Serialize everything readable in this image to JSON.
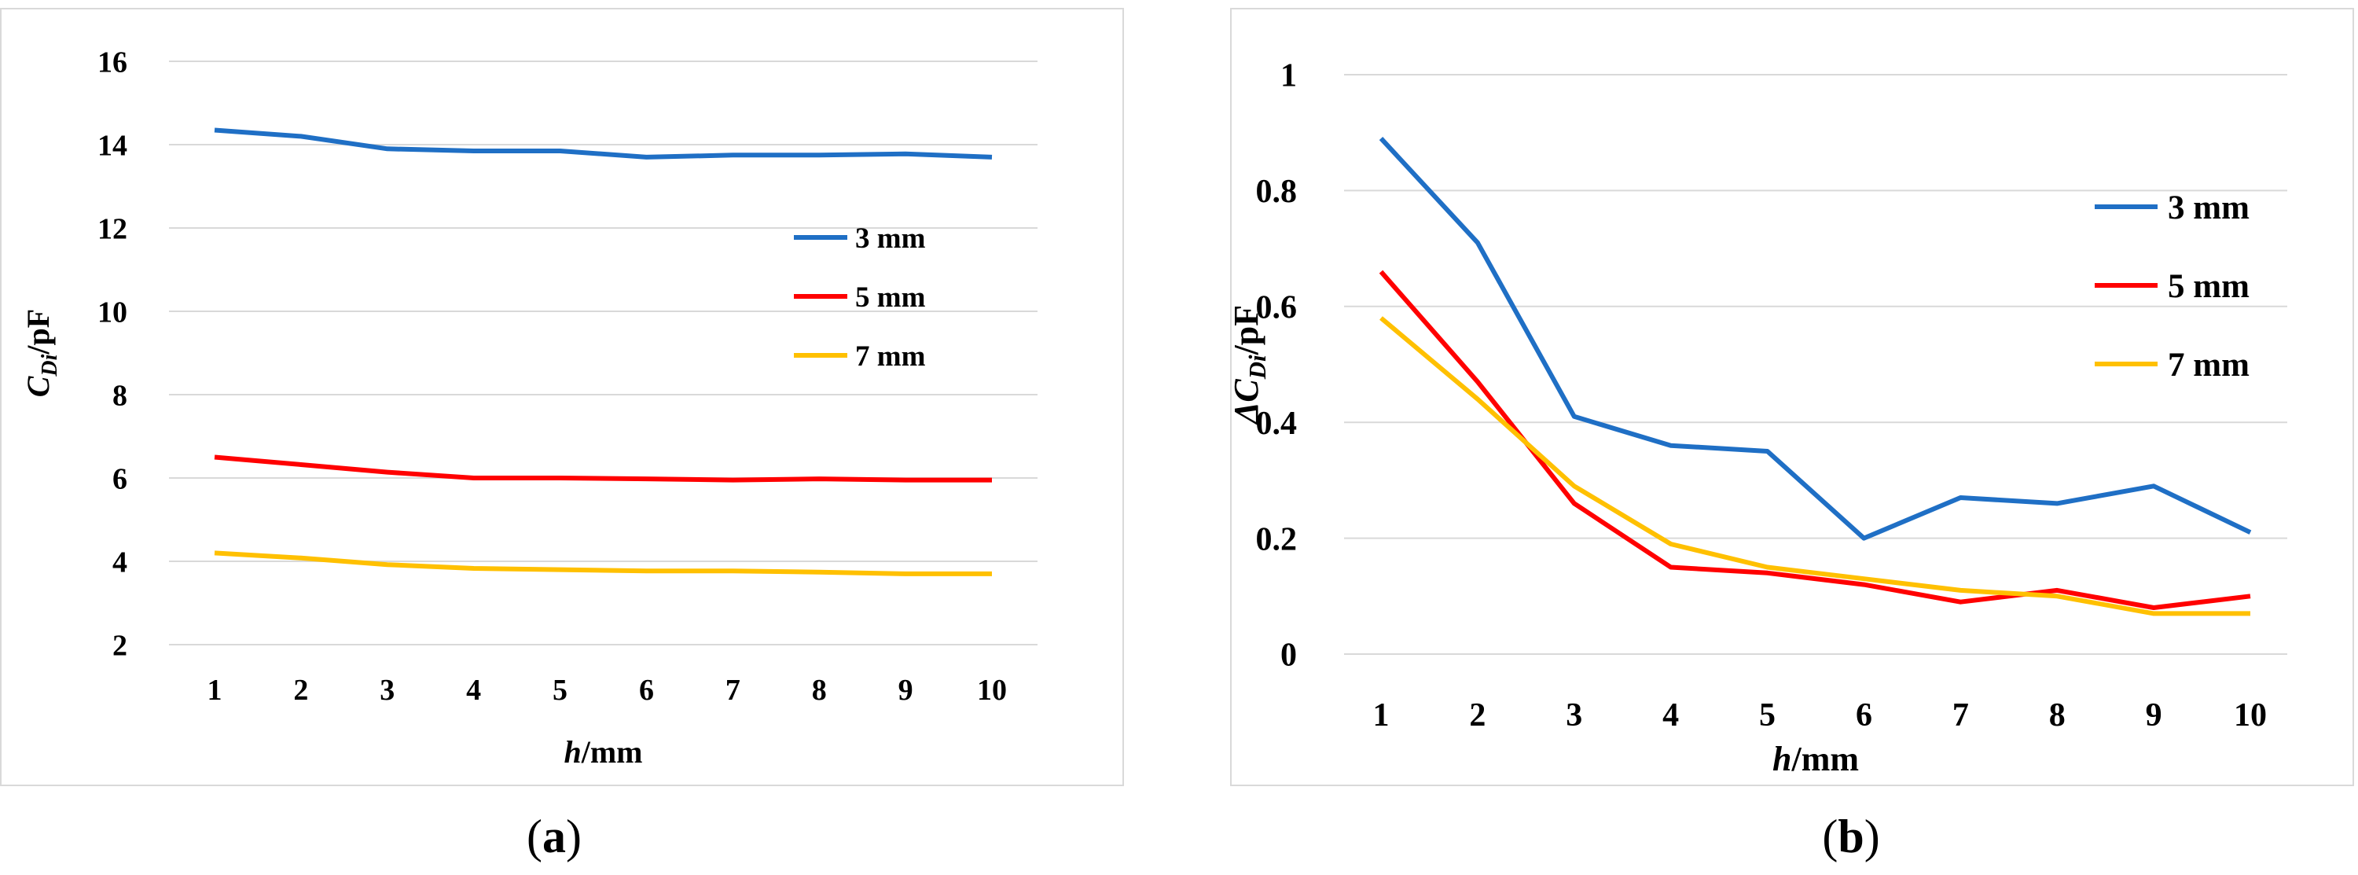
{
  "colors": {
    "s3": "#1f6fc5",
    "s5": "#ff0000",
    "s7": "#ffc000",
    "grid": "#d9d9d9",
    "frame": "#d9d9d9"
  },
  "labels": {
    "a": "a",
    "b": "b"
  },
  "chart_data": [
    {
      "id": "a",
      "type": "line",
      "title": "",
      "ylabel_main": "C",
      "ylabel_sub": "Di",
      "ylabel_unit": "/pF",
      "xlabel_main": "h",
      "xlabel_unit": "/mm",
      "x": [
        1,
        2,
        3,
        4,
        5,
        6,
        7,
        8,
        9,
        10
      ],
      "ylim": [
        2,
        16
      ],
      "yticks": [
        2,
        4,
        6,
        8,
        10,
        12,
        14,
        16
      ],
      "legend_position": "right",
      "series": [
        {
          "name": "3 mm",
          "color_key": "s3",
          "values": [
            14.35,
            14.2,
            13.9,
            13.85,
            13.85,
            13.7,
            13.75,
            13.75,
            13.78,
            13.7
          ]
        },
        {
          "name": "5 mm",
          "color_key": "s5",
          "values": [
            6.5,
            6.32,
            6.14,
            6.0,
            6.0,
            5.98,
            5.95,
            5.98,
            5.95,
            5.95
          ]
        },
        {
          "name": "7 mm",
          "color_key": "s7",
          "values": [
            4.2,
            4.08,
            3.92,
            3.83,
            3.8,
            3.77,
            3.77,
            3.74,
            3.7,
            3.7
          ]
        }
      ]
    },
    {
      "id": "b",
      "type": "line",
      "title": "",
      "ylabel_main": "ΔC",
      "ylabel_sub": "Di",
      "ylabel_unit": "/pF",
      "xlabel_main": "h",
      "xlabel_unit": "/mm",
      "x": [
        1,
        2,
        3,
        4,
        5,
        6,
        7,
        8,
        9,
        10
      ],
      "ylim": [
        0,
        1
      ],
      "yticks": [
        0,
        0.2,
        0.4,
        0.6,
        0.8,
        1
      ],
      "legend_position": "right",
      "series": [
        {
          "name": "3 mm",
          "color_key": "s3",
          "values": [
            0.89,
            0.71,
            0.41,
            0.36,
            0.35,
            0.2,
            0.27,
            0.26,
            0.29,
            0.21
          ]
        },
        {
          "name": "5 mm",
          "color_key": "s5",
          "values": [
            0.66,
            0.47,
            0.26,
            0.15,
            0.14,
            0.12,
            0.09,
            0.11,
            0.08,
            0.1
          ]
        },
        {
          "name": "7 mm",
          "color_key": "s7",
          "values": [
            0.58,
            0.44,
            0.29,
            0.19,
            0.15,
            0.13,
            0.11,
            0.1,
            0.07,
            0.07
          ]
        }
      ]
    }
  ]
}
